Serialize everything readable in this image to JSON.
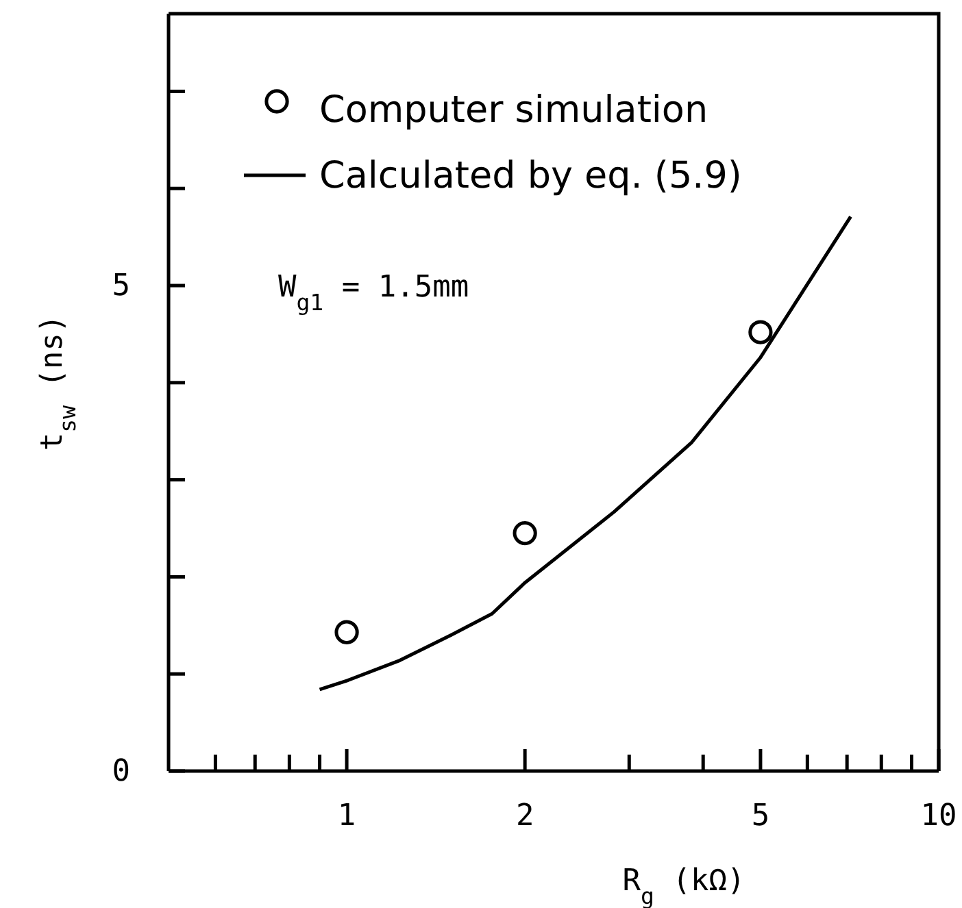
{
  "chart_data": {
    "type": "scatter",
    "xlabel": "R$_{g}$  (kΩ)",
    "ylabel": "t$_{sw}$ (ns)",
    "log": "x",
    "xlim": [
      0.5,
      10
    ],
    "ylim": [
      0,
      7.8
    ],
    "xticks": [
      {
        "value": 0.6,
        "label": null
      },
      {
        "value": 0.7,
        "label": null
      },
      {
        "value": 0.8,
        "label": null
      },
      {
        "value": 0.9,
        "label": null
      },
      1,
      2,
      {
        "value": 3,
        "label": null
      },
      {
        "value": 4,
        "label": null
      },
      5,
      {
        "value": 6,
        "label": null
      },
      {
        "value": 7,
        "label": null
      },
      {
        "value": 8,
        "label": null
      },
      {
        "value": 9,
        "label": null
      },
      10
    ],
    "yticks": [
      0,
      {
        "value": 1,
        "label": null
      },
      {
        "value": 2,
        "label": null
      },
      {
        "value": 3,
        "label": null
      },
      {
        "value": 4,
        "label": null
      },
      5,
      {
        "value": 6,
        "label": null
      },
      {
        "value": 7,
        "label": null
      }
    ],
    "series": [
      {
        "name": "Computer simulation",
        "marker": "circle",
        "color": "#000000",
        "x": [
          1,
          2,
          5
        ],
        "values": [
          1.43,
          2.45,
          4.52
        ]
      },
      {
        "name": "Calculated by eq. (5.9)",
        "type": "line",
        "marker": "none",
        "color": "#000000",
        "x": [
          0.9,
          1,
          1.23,
          1.5,
          1.76,
          2,
          2.83,
          3.82,
          5,
          7.1
        ],
        "values": [
          0.84,
          0.93,
          1.14,
          1.4,
          1.62,
          1.94,
          2.67,
          3.38,
          4.26,
          5.71
        ]
      }
    ],
    "annotations": [
      "W$_{g1}$ = 1.5mm"
    ],
    "legend": "top left",
    "grid": false
  }
}
